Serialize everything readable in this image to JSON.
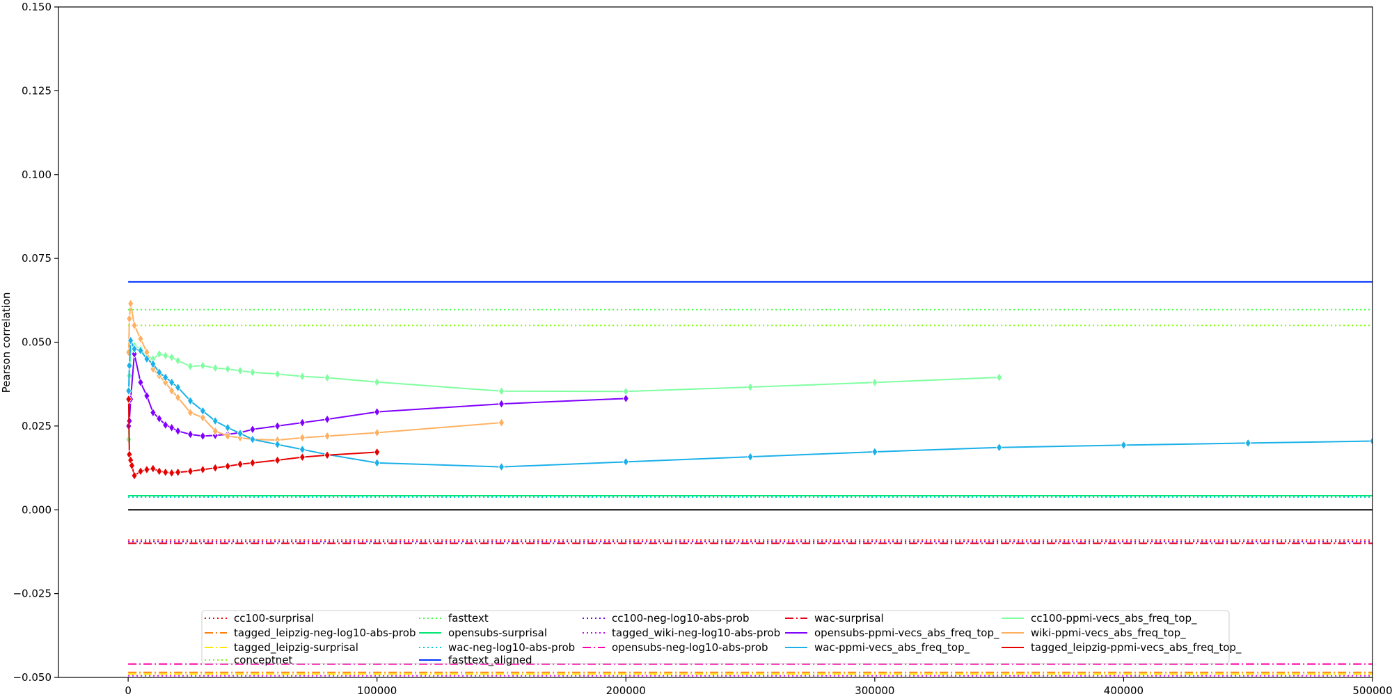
{
  "chart_data": {
    "type": "line",
    "title": "",
    "xlabel": "",
    "ylabel": "Pearson correlation",
    "xlim": [
      -28000,
      500000
    ],
    "ylim": [
      -0.05,
      0.15
    ],
    "x_ticks": [
      0,
      100000,
      200000,
      300000,
      400000,
      500000
    ],
    "x_tick_labels": [
      "0",
      "100000",
      "200000",
      "300000",
      "400000",
      "500000"
    ],
    "y_ticks": [
      -0.05,
      -0.025,
      0.0,
      0.025,
      0.05,
      0.075,
      0.1,
      0.125,
      0.15
    ],
    "y_tick_labels": [
      "−0.050",
      "−0.025",
      "0.000",
      "0.025",
      "0.050",
      "0.075",
      "0.100",
      "0.125",
      "0.150"
    ],
    "grid": false,
    "legend_position": "lower center",
    "legend_columns": 5,
    "zero_line": {
      "y": 0.0,
      "color": "#000000"
    },
    "horizontal_series": [
      {
        "name": "cc100-surprisal",
        "y": -0.009,
        "color": "#ff0000",
        "dash": "dotted"
      },
      {
        "name": "tagged_leipzig-neg-log10-abs-prob",
        "y": -0.0485,
        "color": "#ff7f0e",
        "dash": "dashdot"
      },
      {
        "name": "tagged_leipzig-surprisal",
        "y": -0.049,
        "color": "#ffe600",
        "dash": "dashdot"
      },
      {
        "name": "conceptnet",
        "y": 0.055,
        "color": "#7fff00",
        "dash": "dotted"
      },
      {
        "name": "fasttext",
        "y": 0.0597,
        "color": "#40ff40",
        "dash": "dotted"
      },
      {
        "name": "opensubs-surprisal",
        "y": 0.0042,
        "color": "#00e673",
        "dash": "solid"
      },
      {
        "name": "wac-neg-log10-abs-prob",
        "y": 0.0038,
        "color": "#00cccc",
        "dash": "dotted"
      },
      {
        "name": "fasttext_aligned",
        "y": 0.068,
        "color": "#0033ff",
        "dash": "solid"
      },
      {
        "name": "cc100-neg-log10-abs-prob",
        "y": -0.0095,
        "color": "#6a00ff",
        "dash": "dotted"
      },
      {
        "name": "tagged_wiki-neg-log10-abs-prob",
        "y": -0.0495,
        "color": "#cc00ff",
        "dash": "dotted"
      },
      {
        "name": "opensubs-neg-log10-abs-prob",
        "y": -0.046,
        "color": "#ff00aa",
        "dash": "dashdot"
      },
      {
        "name": "wac-surprisal",
        "y": -0.01,
        "color": "#e6001a",
        "dash": "dashdot"
      }
    ],
    "series": [
      {
        "name": "cc100-ppmi-vecs_abs_freq_top_",
        "color": "#7fffa0",
        "x": [
          200,
          500,
          1000,
          2500,
          5000,
          7500,
          10000,
          12500,
          15000,
          17500,
          20000,
          25000,
          30000,
          35000,
          40000,
          45000,
          50000,
          60000,
          70000,
          80000,
          100000,
          150000,
          200000,
          250000,
          300000,
          350000
        ],
        "y": [
          0.021,
          0.04,
          0.047,
          0.049,
          0.048,
          0.046,
          0.045,
          0.0465,
          0.046,
          0.0455,
          0.0445,
          0.0428,
          0.043,
          0.0423,
          0.042,
          0.0415,
          0.041,
          0.0405,
          0.0398,
          0.0394,
          0.0381,
          0.0354,
          0.0353,
          0.0366,
          0.038,
          0.0395
        ]
      },
      {
        "name": "opensubs-ppmi-vecs_abs_freq_top_",
        "color": "#7f00ff",
        "x": [
          200,
          500,
          1000,
          2500,
          5000,
          7500,
          10000,
          12500,
          15000,
          17500,
          20000,
          25000,
          30000,
          35000,
          40000,
          45000,
          50000,
          60000,
          70000,
          80000,
          100000,
          150000,
          200000
        ],
        "y": [
          0.025,
          0.0265,
          0.033,
          0.0465,
          0.038,
          0.034,
          0.029,
          0.0272,
          0.0253,
          0.0245,
          0.0235,
          0.0225,
          0.022,
          0.0222,
          0.0225,
          0.023,
          0.024,
          0.025,
          0.026,
          0.027,
          0.0292,
          0.0316,
          0.0332
        ]
      },
      {
        "name": "wiki-ppmi-vecs_abs_freq_top_",
        "color": "#ffb060",
        "x": [
          200,
          500,
          1000,
          2500,
          5000,
          7500,
          10000,
          12500,
          15000,
          17500,
          20000,
          25000,
          30000,
          35000,
          40000,
          45000,
          50000,
          60000,
          70000,
          80000,
          100000,
          150000
        ],
        "y": [
          0.047,
          0.057,
          0.0615,
          0.055,
          0.051,
          0.047,
          0.042,
          0.04,
          0.038,
          0.0355,
          0.0335,
          0.029,
          0.0275,
          0.0235,
          0.022,
          0.0215,
          0.021,
          0.0208,
          0.0215,
          0.022,
          0.023,
          0.026
        ]
      },
      {
        "name": "wac-ppmi-vecs_abs_freq_top_",
        "color": "#1ab0e8",
        "x": [
          200,
          500,
          1000,
          2500,
          5000,
          7500,
          10000,
          12500,
          15000,
          17500,
          20000,
          25000,
          30000,
          35000,
          40000,
          45000,
          50000,
          60000,
          70000,
          80000,
          100000,
          150000,
          200000,
          250000,
          300000,
          350000,
          400000,
          450000,
          500000
        ],
        "y": [
          0.0355,
          0.043,
          0.0505,
          0.048,
          0.0475,
          0.045,
          0.0435,
          0.041,
          0.0395,
          0.038,
          0.0365,
          0.0325,
          0.0295,
          0.0265,
          0.0245,
          0.0228,
          0.021,
          0.0195,
          0.018,
          0.0165,
          0.014,
          0.0128,
          0.0143,
          0.0158,
          0.0173,
          0.0186,
          0.0193,
          0.0199,
          0.0205
        ]
      },
      {
        "name": "tagged_leipzig-ppmi-vecs_abs_freq_top_",
        "color": "#e60000",
        "x": [
          200,
          500,
          1000,
          1500,
          2500,
          5000,
          7500,
          10000,
          12500,
          15000,
          17500,
          20000,
          25000,
          30000,
          35000,
          40000,
          45000,
          50000,
          60000,
          70000,
          80000,
          100000
        ],
        "y": [
          0.033,
          0.0165,
          0.0148,
          0.0132,
          0.0102,
          0.0115,
          0.012,
          0.0123,
          0.0115,
          0.0112,
          0.011,
          0.0112,
          0.0115,
          0.012,
          0.0125,
          0.013,
          0.0136,
          0.014,
          0.0148,
          0.0157,
          0.0163,
          0.0172
        ]
      }
    ],
    "legend_order": [
      "cc100-surprisal",
      "tagged_leipzig-neg-log10-abs-prob",
      "tagged_leipzig-surprisal",
      "conceptnet",
      "fasttext",
      "opensubs-surprisal",
      "wac-neg-log10-abs-prob",
      "fasttext_aligned",
      "cc100-neg-log10-abs-prob",
      "tagged_wiki-neg-log10-abs-prob",
      "opensubs-neg-log10-abs-prob",
      "",
      "wac-surprisal",
      "opensubs-ppmi-vecs_abs_freq_top_",
      "wac-ppmi-vecs_abs_freq_top_",
      "",
      "cc100-ppmi-vecs_abs_freq_top_",
      "wiki-ppmi-vecs_abs_freq_top_",
      "tagged_leipzig-ppmi-vecs_abs_freq_top_",
      ""
    ]
  }
}
